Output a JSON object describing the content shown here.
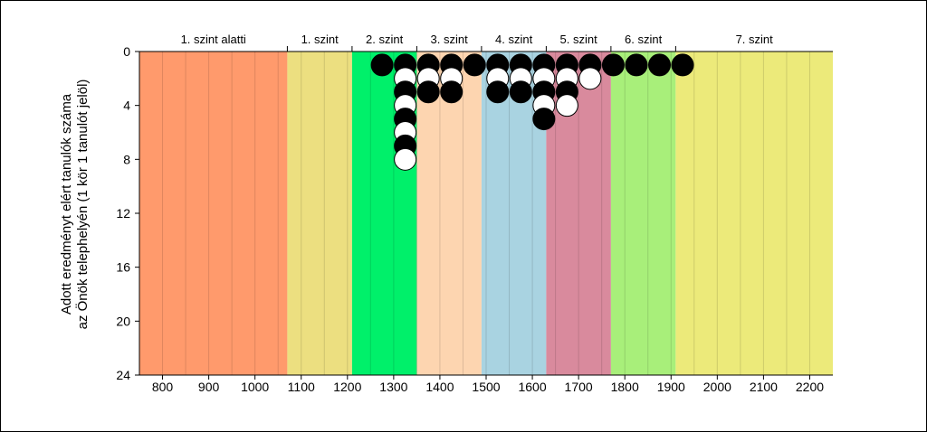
{
  "chart_data": {
    "type": "scatter",
    "ylabel_lines": [
      "Adott eredményt elért tanulók száma",
      "az Önök telephelyén (1 kör 1 tanulót jelöl)"
    ],
    "xlim": [
      750,
      2250
    ],
    "ylim": [
      0,
      24
    ],
    "y_inverted": true,
    "x_ticks": [
      800,
      900,
      1000,
      1100,
      1200,
      1300,
      1400,
      1500,
      1600,
      1700,
      1800,
      1900,
      2000,
      2100,
      2200
    ],
    "y_ticks": [
      0,
      4,
      8,
      12,
      16,
      20,
      24
    ],
    "grid": "vertical",
    "bands": [
      {
        "label": "1. szint alatti",
        "from": 750,
        "to": 1070,
        "color": "#ff9a6c"
      },
      {
        "label": "1. szint",
        "from": 1070,
        "to": 1210,
        "color": "#ecdf80"
      },
      {
        "label": "2. szint",
        "from": 1210,
        "to": 1350,
        "color": "#00f06a"
      },
      {
        "label": "3. szint",
        "from": 1350,
        "to": 1490,
        "color": "#fdd5b0"
      },
      {
        "label": "4. szint",
        "from": 1490,
        "to": 1630,
        "color": "#a9d3e1"
      },
      {
        "label": "5. szint",
        "from": 1630,
        "to": 1770,
        "color": "#d98a9d"
      },
      {
        "label": "6. szint",
        "from": 1770,
        "to": 1910,
        "color": "#a8ef7a"
      },
      {
        "label": "7. szint",
        "from": 1910,
        "to": 2250,
        "color": "#ecea7a"
      }
    ],
    "columns": [
      {
        "x": 1275,
        "counts": 1
      },
      {
        "x": 1325,
        "counts": 8
      },
      {
        "x": 1375,
        "counts": 3
      },
      {
        "x": 1425,
        "counts": 3
      },
      {
        "x": 1475,
        "counts": 1
      },
      {
        "x": 1525,
        "counts": 3
      },
      {
        "x": 1575,
        "counts": 3
      },
      {
        "x": 1625,
        "counts": 5
      },
      {
        "x": 1675,
        "counts": 4
      },
      {
        "x": 1725,
        "counts": 2
      },
      {
        "x": 1775,
        "counts": 1
      },
      {
        "x": 1825,
        "counts": 1
      },
      {
        "x": 1875,
        "counts": 1
      },
      {
        "x": 1925,
        "counts": 1
      }
    ],
    "marker_fill_pattern": [
      "#000000",
      "#ffffff"
    ]
  }
}
